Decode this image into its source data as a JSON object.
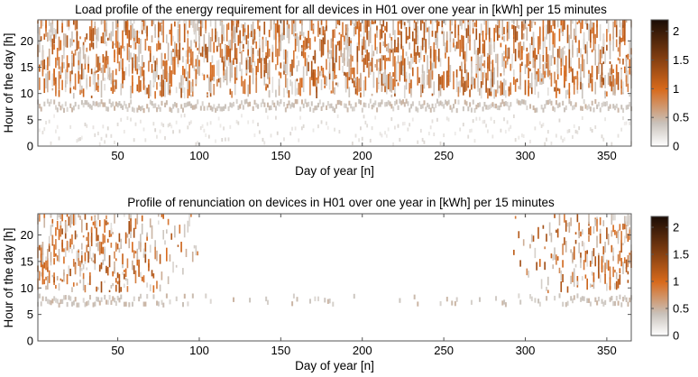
{
  "charts": [
    {
      "type": "heatmap",
      "title": "Load profile of the energy requirement for all devices in H01 over one year in [kWh] per 15 minutes",
      "xlabel": "Day of year [n]",
      "ylabel": "Hour of the day [h]",
      "xlim": [
        1,
        365
      ],
      "ylim": [
        0,
        24
      ],
      "xticks": [
        50,
        100,
        150,
        200,
        250,
        300,
        350
      ],
      "yticks": [
        0,
        5,
        10,
        15,
        20
      ],
      "colorbar": {
        "ticks": [
          0,
          0.5,
          1,
          1.5,
          2
        ],
        "range": [
          0,
          2.2
        ]
      },
      "density": "high",
      "note_values": "scattered per-15-minute energy values over 365 days"
    },
    {
      "type": "heatmap",
      "title": "Profile of renunciation on devices in H01 over one year in [kWh] per 15 minutes",
      "xlabel": "Day of year [n]",
      "ylabel": "Hour of the day [h]",
      "xlim": [
        1,
        365
      ],
      "ylim": [
        0,
        24
      ],
      "xticks": [
        50,
        100,
        150,
        200,
        250,
        300,
        350
      ],
      "yticks": [
        0,
        5,
        10,
        15,
        20
      ],
      "colorbar": {
        "ticks": [
          0,
          0.5,
          1,
          1.5,
          2
        ],
        "range": [
          0,
          2.2
        ]
      },
      "density": "seasonal",
      "note_values": "values concentrated in winter months, sparse in summer"
    }
  ],
  "chart_data": [
    {
      "type": "heatmap",
      "title": "Load profile of the energy requirement for all devices in H01 over one year in [kWh] per 15 minutes",
      "xlabel": "Day of year [n]",
      "ylabel": "Hour of the day [h]",
      "xlim": [
        1,
        365
      ],
      "ylim": [
        0,
        24
      ],
      "xticks": [
        50,
        100,
        150,
        200,
        250,
        300,
        350
      ],
      "yticks": [
        0,
        5,
        10,
        15,
        20
      ],
      "colorbar_ticks": [
        0,
        0.5,
        1,
        1.5,
        2
      ],
      "color_range": [
        0,
        2.2
      ],
      "colormap": [
        "#ffffff",
        "#c9c2bb",
        "#d86a1c",
        "#7a3a10",
        "#1a0c05"
      ]
    },
    {
      "type": "heatmap",
      "title": "Profile of renunciation on devices in H01 over one year in [kWh] per 15 minutes",
      "xlabel": "Day of year [n]",
      "ylabel": "Hour of the day [h]",
      "xlim": [
        1,
        365
      ],
      "ylim": [
        0,
        24
      ],
      "xticks": [
        50,
        100,
        150,
        200,
        250,
        300,
        350
      ],
      "yticks": [
        0,
        5,
        10,
        15,
        20
      ],
      "colorbar_ticks": [
        0,
        0.5,
        1,
        1.5,
        2
      ],
      "color_range": [
        0,
        2.2
      ],
      "colormap": [
        "#ffffff",
        "#c9c2bb",
        "#d86a1c",
        "#7a3a10",
        "#1a0c05"
      ]
    }
  ]
}
